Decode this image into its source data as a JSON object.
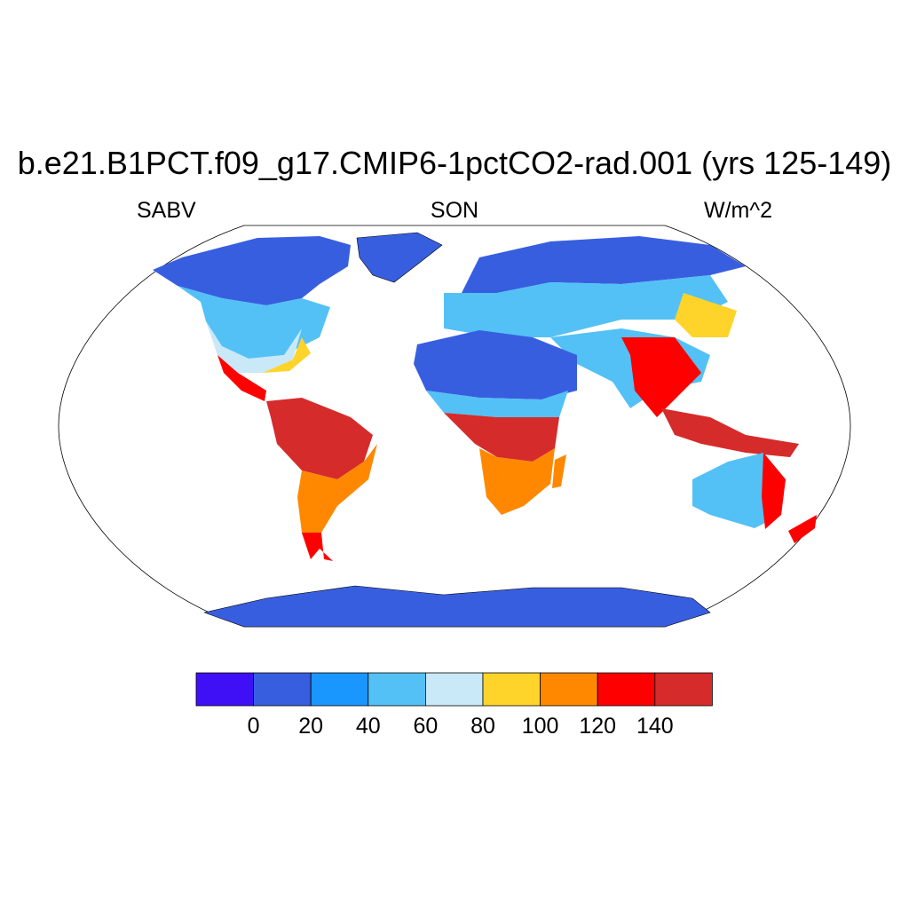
{
  "title": "b.e21.B1PCT.f09_g17.CMIP6-1pctCO2-rad.001 (yrs 125-149)",
  "left_string": "SABV",
  "center_string": "SON",
  "right_string": "W/m^2",
  "colorbar": {
    "colors": [
      "#3f0ff6",
      "#385ee0",
      "#1a96ff",
      "#53c1f6",
      "#c9e8f8",
      "#ffd42a",
      "#ff8800",
      "#ff0000",
      "#d62b2b"
    ],
    "labels": [
      "0",
      "20",
      "40",
      "60",
      "80",
      "100",
      "120",
      "140"
    ]
  },
  "map": {
    "projection": "Robinson",
    "ocean_color": "#ffffff",
    "regions": [
      {
        "name": "Greenland",
        "color": "#385ee0"
      },
      {
        "name": "Antarctica",
        "color": "#385ee0"
      },
      {
        "name": "Sahara",
        "color": "#385ee0"
      },
      {
        "name": "Amazon",
        "color": "#d62b2b"
      },
      {
        "name": "Central Africa",
        "color": "#d62b2b"
      },
      {
        "name": "Maritime Continent",
        "color": "#d62b2b"
      }
    ]
  }
}
